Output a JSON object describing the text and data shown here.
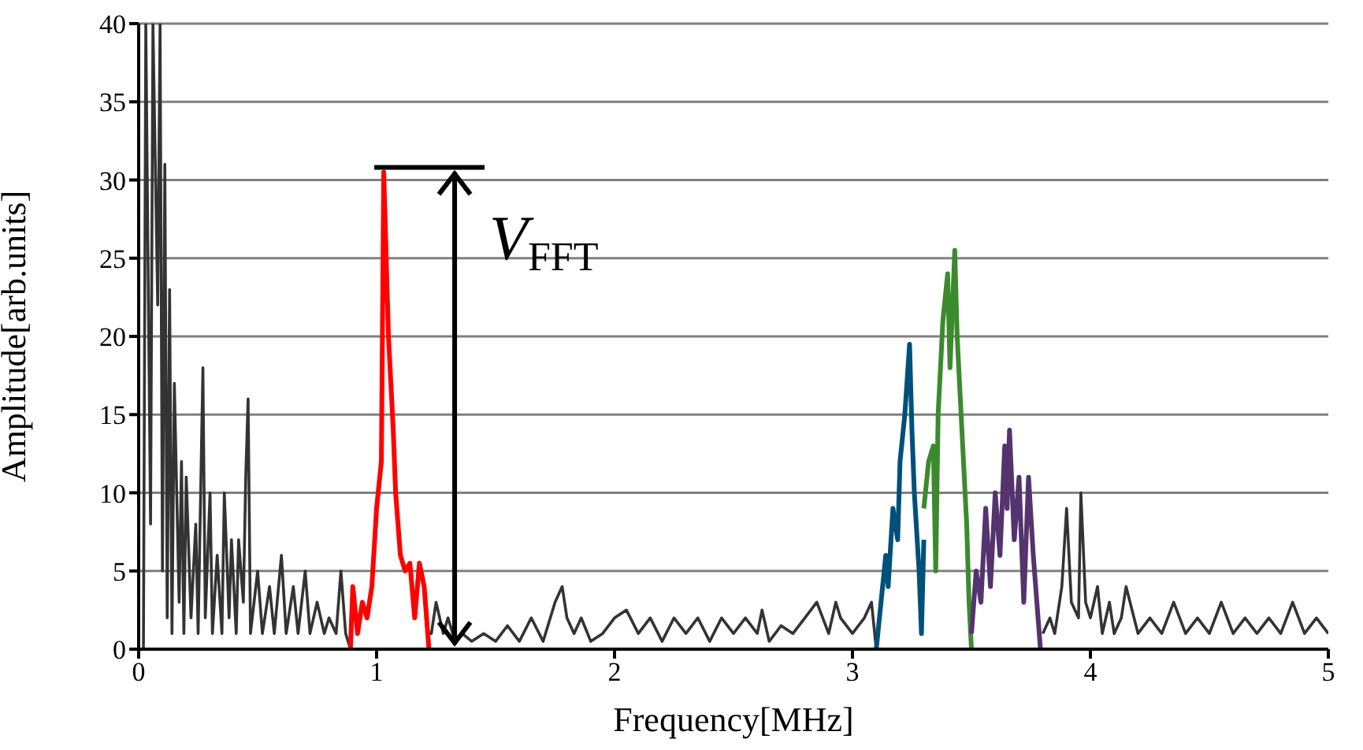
{
  "chart_data": {
    "type": "line",
    "xlabel": "Frequency[MHz]",
    "ylabel": "Amplitude[arb.units]",
    "xlim": [
      0,
      5
    ],
    "xticks": [
      0,
      1,
      2,
      3,
      4,
      5
    ],
    "ylim": [
      0,
      40
    ],
    "yticks": [
      0,
      5,
      10,
      15,
      20,
      25,
      30,
      35,
      40
    ],
    "grid": "y",
    "legend": false,
    "marker": "none",
    "line_style": "solid",
    "annotations": [
      {
        "text": "V$_{FFT}$",
        "x": 1.03,
        "y": 30.5
      }
    ],
    "series": [
      {
        "color": "#333333",
        "x": [
          0.02,
          0.03,
          0.05,
          0.06,
          0.08,
          0.09,
          0.1,
          0.11,
          0.12,
          0.13,
          0.14,
          0.15,
          0.17,
          0.18,
          0.19,
          0.2,
          0.22,
          0.24,
          0.25,
          0.27,
          0.28,
          0.3,
          0.31,
          0.33,
          0.35,
          0.36,
          0.38,
          0.39,
          0.41,
          0.42,
          0.44,
          0.45,
          0.46,
          0.47,
          0.5,
          0.52,
          0.55,
          0.57,
          0.6,
          0.62,
          0.65,
          0.67,
          0.7,
          0.72,
          0.75,
          0.78,
          0.8,
          0.83,
          0.85,
          0.87,
          0.89,
          1.05,
          1.22,
          1.23,
          1.25,
          1.28,
          1.3,
          1.33,
          1.36,
          1.4,
          1.45,
          1.5,
          1.55,
          1.6,
          1.65,
          1.7,
          1.75,
          1.78,
          1.8,
          1.83,
          1.86,
          1.9,
          1.95,
          2.0,
          2.05,
          2.1,
          2.15,
          2.2,
          2.25,
          2.3,
          2.35,
          2.4,
          2.45,
          2.5,
          2.55,
          2.6,
          2.62,
          2.65,
          2.7,
          2.75,
          2.8,
          2.85,
          2.9,
          2.93,
          2.95,
          3.0,
          3.05,
          3.08,
          3.1,
          3.45,
          3.8,
          3.83,
          3.85,
          3.88,
          3.9,
          3.92,
          3.95,
          3.96,
          3.98,
          4.0,
          4.03,
          4.05,
          4.08,
          4.1,
          4.13,
          4.15,
          4.2,
          4.25,
          4.3,
          4.35,
          4.4,
          4.45,
          4.5,
          4.55,
          4.6,
          4.65,
          4.7,
          4.75,
          4.8,
          4.85,
          4.9,
          4.95,
          5.0
        ],
        "values": [
          0,
          40,
          8,
          40,
          22,
          40,
          5,
          31,
          2,
          23,
          1,
          17,
          3,
          12,
          1,
          11,
          2,
          8,
          1,
          18,
          2,
          10,
          1,
          6,
          1,
          10,
          2,
          7,
          1,
          7,
          3,
          11,
          16,
          1,
          5,
          1,
          4,
          1,
          6,
          1,
          4,
          1,
          5,
          1,
          3,
          1,
          2,
          1,
          5,
          1,
          0,
          null,
          1,
          1,
          3,
          1,
          2,
          0.5,
          1,
          0.5,
          1,
          0.5,
          1.5,
          0.5,
          2,
          0.5,
          3,
          4,
          2,
          1,
          2,
          0.5,
          1,
          2,
          2.5,
          1,
          2,
          0.5,
          2,
          1,
          2,
          0.5,
          2,
          1,
          2,
          1,
          2.5,
          0.5,
          1.5,
          1,
          2,
          3,
          1,
          3,
          2,
          1,
          2,
          3,
          0,
          null,
          1,
          2,
          1,
          4,
          9,
          3,
          2,
          10,
          3,
          2,
          4,
          1,
          3,
          1,
          2,
          4,
          1,
          2,
          1,
          3,
          1,
          2,
          1,
          3,
          1,
          2,
          1,
          2,
          1,
          3,
          1,
          2,
          1
        ]
      },
      {
        "color": "#ff0000",
        "x": [
          0.89,
          0.9,
          0.92,
          0.94,
          0.96,
          0.98,
          1.0,
          1.02,
          1.03,
          1.05,
          1.07,
          1.08,
          1.1,
          1.12,
          1.14,
          1.16,
          1.18,
          1.2,
          1.22
        ],
        "values": [
          0,
          4,
          1,
          3,
          2,
          4,
          9,
          12,
          30.5,
          20,
          14,
          10,
          6,
          5,
          5.5,
          2,
          5.5,
          4,
          0
        ]
      },
      {
        "color": "#00507c",
        "x": [
          3.1,
          3.12,
          3.14,
          3.15,
          3.17,
          3.19,
          3.2,
          3.22,
          3.24,
          3.25,
          3.26,
          3.28,
          3.29,
          3.3
        ],
        "values": [
          0,
          3,
          6,
          4,
          9,
          7,
          12,
          15,
          19.5,
          14,
          10,
          5,
          1,
          7
        ]
      },
      {
        "color": "#3c8a2e",
        "x": [
          3.3,
          3.32,
          3.34,
          3.35,
          3.36,
          3.38,
          3.4,
          3.41,
          3.43,
          3.44,
          3.46,
          3.48,
          3.49,
          3.5
        ],
        "values": [
          9,
          12,
          13,
          5,
          15,
          21,
          24,
          18,
          25.5,
          20,
          14,
          8,
          3,
          0
        ]
      },
      {
        "color": "#55336e",
        "x": [
          3.5,
          3.52,
          3.54,
          3.56,
          3.58,
          3.6,
          3.62,
          3.64,
          3.65,
          3.66,
          3.68,
          3.7,
          3.72,
          3.74,
          3.76,
          3.78,
          3.79
        ],
        "values": [
          1,
          5,
          3,
          9,
          4,
          10,
          6,
          13,
          9,
          14,
          7,
          11,
          3,
          11,
          6,
          2,
          0
        ]
      }
    ]
  }
}
